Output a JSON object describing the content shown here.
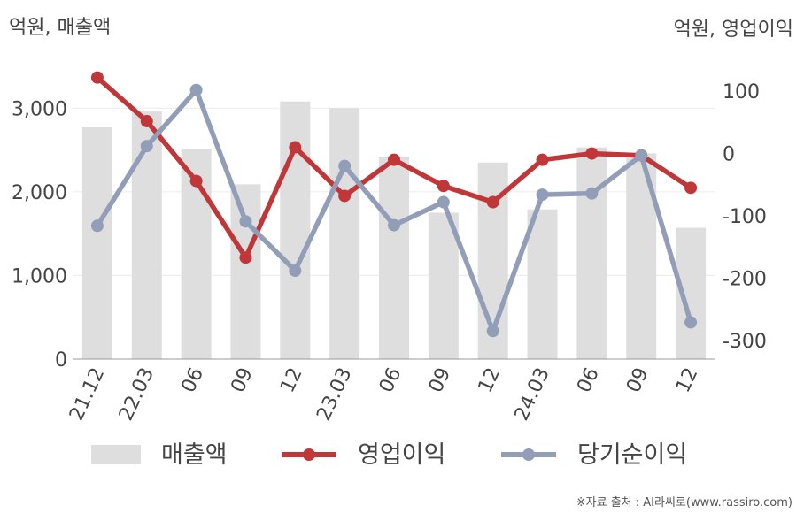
{
  "chart_data": {
    "type": "bar+line",
    "left_axis_label": "억원, 매출액",
    "right_axis_label": "억원, 영업이익",
    "categories": [
      "21.12",
      "22.03",
      "06",
      "09",
      "12",
      "23.03",
      "06",
      "09",
      "12",
      "24.03",
      "06",
      "09",
      "12"
    ],
    "left_ylim": [
      0,
      3500
    ],
    "left_ticks": [
      0,
      1000,
      2000,
      3000
    ],
    "left_tick_labels": [
      "0",
      "1,000",
      "2,000",
      "3,000"
    ],
    "right_ylim": [
      -330,
      140
    ],
    "right_ticks": [
      -300,
      -200,
      -100,
      0,
      100
    ],
    "right_tick_labels": [
      "-300",
      "-200",
      "-100",
      "0",
      "100"
    ],
    "series": [
      {
        "name": "매출액",
        "kind": "bar",
        "axis": "left",
        "color": "#dedede",
        "values": [
          2770,
          2960,
          2510,
          2090,
          3080,
          3000,
          2420,
          1750,
          2350,
          1790,
          2530,
          2460,
          1570
        ]
      },
      {
        "name": "영업이익",
        "kind": "line",
        "axis": "right",
        "color": "#c0373a",
        "values": [
          122,
          52,
          -44,
          -167,
          10,
          -68,
          -10,
          -52,
          -78,
          -10,
          0,
          -3,
          -55
        ]
      },
      {
        "name": "당기순이익",
        "kind": "line",
        "axis": "right",
        "color": "#929eb8",
        "values": [
          -116,
          12,
          102,
          -109,
          -188,
          -20,
          -115,
          -78,
          -285,
          -66,
          -64,
          -3,
          -271
        ]
      }
    ],
    "grid": true,
    "legend_position": "bottom"
  },
  "source_text": "※자료 출처 : AI라씨로(www.rassiro.com)"
}
